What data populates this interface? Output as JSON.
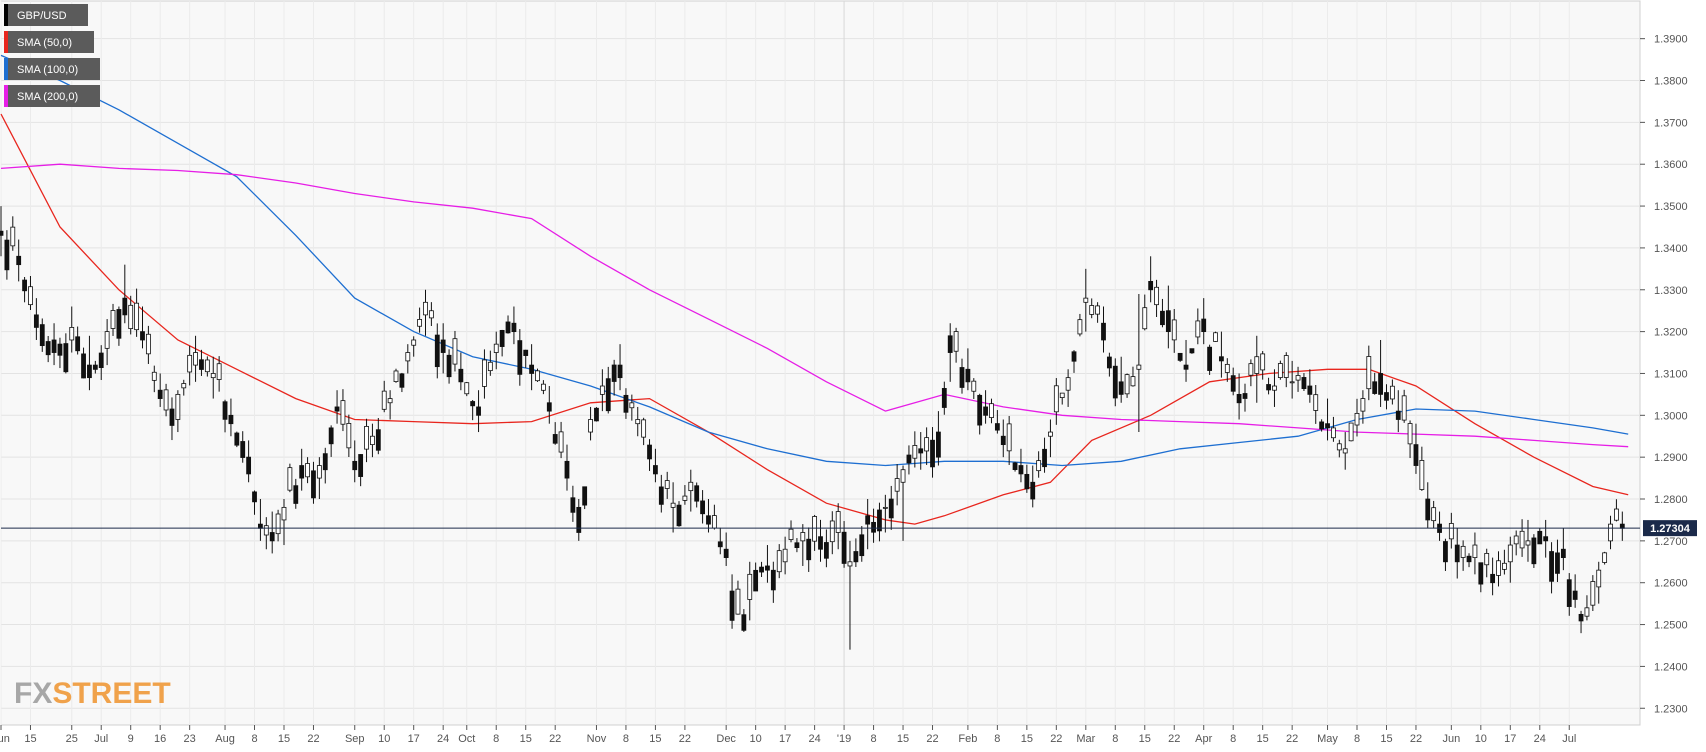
{
  "chart_data": {
    "type": "candlestick",
    "symbol": "GBP/USD",
    "legend": [
      {
        "label": "GBP/USD",
        "color": "#000000"
      },
      {
        "label": "SMA (50,0)",
        "color": "#e8261e"
      },
      {
        "label": "SMA (100,0)",
        "color": "#1e6fd1"
      },
      {
        "label": "SMA (200,0)",
        "color": "#e61ee6"
      }
    ],
    "legend_position": "top-left",
    "ylim": [
      1.226,
      1.399
    ],
    "y_ticks": [
      "1.2300",
      "1.2400",
      "1.2500",
      "1.2600",
      "1.2700",
      "1.2800",
      "1.2900",
      "1.3000",
      "1.3100",
      "1.3200",
      "1.3300",
      "1.3400",
      "1.3500",
      "1.3600",
      "1.3700",
      "1.3800",
      "1.3900"
    ],
    "x_ticks": [
      "Jun",
      "15",
      "25",
      "Jul",
      "9",
      "16",
      "23",
      "Aug",
      "8",
      "15",
      "22",
      "Sep",
      "10",
      "17",
      "24",
      "Oct",
      "8",
      "15",
      "22",
      "Nov",
      "8",
      "15",
      "22",
      "Dec",
      "10",
      "17",
      "24",
      "'19",
      "8",
      "15",
      "22",
      "Feb",
      "8",
      "15",
      "22",
      "Mar",
      "8",
      "15",
      "22",
      "Apr",
      "8",
      "15",
      "22",
      "May",
      "8",
      "15",
      "22",
      "Jun",
      "10",
      "17",
      "24",
      "Jul"
    ],
    "x_range_bars": [
      0,
      278
    ],
    "x_tick_bar_index": [
      0,
      5,
      12,
      17,
      22,
      27,
      32,
      38,
      43,
      48,
      53,
      60,
      65,
      70,
      75,
      79,
      84,
      89,
      94,
      101,
      106,
      111,
      116,
      123,
      128,
      133,
      138,
      143,
      148,
      153,
      158,
      164,
      169,
      174,
      179,
      184,
      189,
      194,
      199,
      204,
      209,
      214,
      219,
      225,
      230,
      235,
      240,
      246,
      251,
      256,
      261,
      266
    ],
    "current_price": "1.27304",
    "grid": true,
    "anchors": [
      [
        0,
        1.344,
        1.35,
        1.338,
        1.343
      ],
      [
        3,
        1.338,
        1.342,
        1.332,
        1.336
      ],
      [
        6,
        1.324,
        1.328,
        1.318,
        1.321
      ],
      [
        9,
        1.318,
        1.322,
        1.312,
        1.315
      ],
      [
        12,
        1.318,
        1.326,
        1.315,
        1.321
      ],
      [
        15,
        1.312,
        1.319,
        1.306,
        1.309
      ],
      [
        18,
        1.316,
        1.323,
        1.312,
        1.32
      ],
      [
        21,
        1.328,
        1.336,
        1.322,
        1.324
      ],
      [
        24,
        1.32,
        1.326,
        1.316,
        1.318
      ],
      [
        27,
        1.306,
        1.31,
        1.302,
        1.304
      ],
      [
        30,
        1.299,
        1.306,
        1.296,
        1.305
      ],
      [
        33,
        1.312,
        1.319,
        1.308,
        1.315
      ],
      [
        36,
        1.309,
        1.314,
        1.304,
        1.31
      ],
      [
        39,
        1.3,
        1.304,
        1.295,
        1.298
      ],
      [
        42,
        1.29,
        1.294,
        1.284,
        1.286
      ],
      [
        44,
        1.274,
        1.28,
        1.27,
        1.273
      ],
      [
        46,
        1.272,
        1.277,
        1.267,
        1.27
      ],
      [
        48,
        1.275,
        1.28,
        1.269,
        1.278
      ],
      [
        51,
        1.288,
        1.292,
        1.282,
        1.285
      ],
      [
        54,
        1.285,
        1.29,
        1.28,
        1.288
      ],
      [
        57,
        1.302,
        1.306,
        1.298,
        1.301
      ],
      [
        60,
        1.289,
        1.294,
        1.284,
        1.287
      ],
      [
        63,
        1.293,
        1.298,
        1.29,
        1.295
      ],
      [
        66,
        1.303,
        1.306,
        1.299,
        1.304
      ],
      [
        69,
        1.313,
        1.317,
        1.31,
        1.315
      ],
      [
        72,
        1.324,
        1.33,
        1.319,
        1.327
      ],
      [
        75,
        1.318,
        1.322,
        1.31,
        1.315
      ],
      [
        78,
        1.311,
        1.315,
        1.306,
        1.308
      ],
      [
        81,
        1.302,
        1.306,
        1.296,
        1.3
      ],
      [
        84,
        1.315,
        1.32,
        1.311,
        1.317
      ],
      [
        87,
        1.322,
        1.326,
        1.317,
        1.32
      ],
      [
        90,
        1.312,
        1.317,
        1.306,
        1.31
      ],
      [
        93,
        1.303,
        1.307,
        1.298,
        1.301
      ],
      [
        96,
        1.289,
        1.293,
        1.282,
        1.285
      ],
      [
        98,
        1.278,
        1.28,
        1.27,
        1.272
      ],
      [
        100,
        1.296,
        1.302,
        1.294,
        1.299
      ],
      [
        102,
        1.305,
        1.311,
        1.301,
        1.307
      ],
      [
        105,
        1.312,
        1.317,
        1.306,
        1.309
      ],
      [
        108,
        1.298,
        1.302,
        1.295,
        1.299
      ],
      [
        111,
        1.288,
        1.292,
        1.284,
        1.286
      ],
      [
        114,
        1.278,
        1.284,
        1.272,
        1.279
      ],
      [
        117,
        1.282,
        1.287,
        1.277,
        1.284
      ],
      [
        120,
        1.276,
        1.28,
        1.272,
        1.274
      ],
      [
        123,
        1.268,
        1.272,
        1.264,
        1.266
      ],
      [
        124,
        1.258,
        1.262,
        1.249,
        1.251
      ],
      [
        127,
        1.256,
        1.265,
        1.251,
        1.262
      ],
      [
        130,
        1.264,
        1.269,
        1.26,
        1.263
      ],
      [
        133,
        1.265,
        1.271,
        1.262,
        1.268
      ],
      [
        136,
        1.27,
        1.274,
        1.264,
        1.272
      ],
      [
        139,
        1.271,
        1.275,
        1.265,
        1.268
      ],
      [
        142,
        1.272,
        1.279,
        1.268,
        1.277
      ],
      [
        144,
        1.264,
        1.27,
        1.244,
        1.265
      ],
      [
        147,
        1.276,
        1.28,
        1.268,
        1.274
      ],
      [
        150,
        1.278,
        1.281,
        1.272,
        1.278
      ],
      [
        153,
        1.284,
        1.288,
        1.27,
        1.287
      ],
      [
        156,
        1.292,
        1.296,
        1.287,
        1.291
      ],
      [
        159,
        1.296,
        1.301,
        1.288,
        1.29
      ],
      [
        161,
        1.319,
        1.322,
        1.308,
        1.315
      ],
      [
        164,
        1.311,
        1.316,
        1.306,
        1.308
      ],
      [
        167,
        1.302,
        1.306,
        1.298,
        1.3
      ],
      [
        170,
        1.295,
        1.299,
        1.29,
        1.293
      ],
      [
        173,
        1.288,
        1.292,
        1.284,
        1.286
      ],
      [
        175,
        1.284,
        1.288,
        1.278,
        1.28
      ],
      [
        178,
        1.295,
        1.299,
        1.29,
        1.296
      ],
      [
        181,
        1.306,
        1.311,
        1.302,
        1.309
      ],
      [
        184,
        1.327,
        1.335,
        1.32,
        1.328
      ],
      [
        187,
        1.322,
        1.326,
        1.315,
        1.318
      ],
      [
        190,
        1.308,
        1.314,
        1.303,
        1.305
      ],
      [
        193,
        1.311,
        1.329,
        1.296,
        1.312
      ],
      [
        195,
        1.332,
        1.338,
        1.327,
        1.33
      ],
      [
        198,
        1.325,
        1.331,
        1.316,
        1.32
      ],
      [
        201,
        1.312,
        1.318,
        1.308,
        1.311
      ],
      [
        204,
        1.323,
        1.328,
        1.317,
        1.32
      ],
      [
        207,
        1.314,
        1.32,
        1.309,
        1.313
      ],
      [
        210,
        1.305,
        1.31,
        1.299,
        1.303
      ],
      [
        213,
        1.31,
        1.319,
        1.303,
        1.314
      ],
      [
        216,
        1.306,
        1.311,
        1.302,
        1.307
      ],
      [
        219,
        1.308,
        1.313,
        1.304,
        1.308
      ],
      [
        222,
        1.307,
        1.311,
        1.303,
        1.305
      ],
      [
        225,
        1.298,
        1.304,
        1.294,
        1.297
      ],
      [
        228,
        1.291,
        1.296,
        1.287,
        1.292
      ],
      [
        231,
        1.301,
        1.306,
        1.298,
        1.304
      ],
      [
        234,
        1.31,
        1.318,
        1.302,
        1.305
      ],
      [
        237,
        1.301,
        1.306,
        1.296,
        1.299
      ],
      [
        240,
        1.293,
        1.298,
        1.286,
        1.288
      ],
      [
        242,
        1.28,
        1.284,
        1.273,
        1.275
      ],
      [
        244,
        1.274,
        1.277,
        1.27,
        1.272
      ],
      [
        247,
        1.269,
        1.273,
        1.261,
        1.265
      ],
      [
        250,
        1.266,
        1.272,
        1.262,
        1.269
      ],
      [
        253,
        1.262,
        1.266,
        1.257,
        1.26
      ],
      [
        256,
        1.265,
        1.271,
        1.26,
        1.269
      ],
      [
        259,
        1.269,
        1.275,
        1.265,
        1.27
      ],
      [
        262,
        1.271,
        1.275,
        1.266,
        1.27
      ],
      [
        265,
        1.268,
        1.273,
        1.263,
        1.266
      ],
      [
        267,
        1.258,
        1.262,
        1.254,
        1.256
      ],
      [
        269,
        1.252,
        1.257,
        1.251,
        1.254
      ],
      [
        271,
        1.259,
        1.265,
        1.255,
        1.263
      ],
      [
        273,
        1.27,
        1.276,
        1.268,
        1.274
      ],
      [
        275,
        1.274,
        1.277,
        1.27,
        1.273
      ]
    ],
    "series": [
      {
        "name": "SMA (50,0)",
        "color": "#e8261e",
        "points": [
          [
            0,
            1.372
          ],
          [
            10,
            1.345
          ],
          [
            20,
            1.33
          ],
          [
            30,
            1.318
          ],
          [
            40,
            1.311
          ],
          [
            50,
            1.304
          ],
          [
            60,
            1.299
          ],
          [
            70,
            1.2985
          ],
          [
            80,
            1.298
          ],
          [
            90,
            1.2985
          ],
          [
            100,
            1.303
          ],
          [
            110,
            1.304
          ],
          [
            120,
            1.296
          ],
          [
            130,
            1.287
          ],
          [
            140,
            1.279
          ],
          [
            150,
            1.275
          ],
          [
            155,
            1.274
          ],
          [
            160,
            1.276
          ],
          [
            170,
            1.281
          ],
          [
            178,
            1.284
          ],
          [
            185,
            1.294
          ],
          [
            195,
            1.3
          ],
          [
            205,
            1.308
          ],
          [
            215,
            1.31
          ],
          [
            225,
            1.311
          ],
          [
            232,
            1.311
          ],
          [
            240,
            1.307
          ],
          [
            250,
            1.298
          ],
          [
            260,
            1.29
          ],
          [
            270,
            1.283
          ],
          [
            276,
            1.281
          ]
        ]
      },
      {
        "name": "SMA (100,0)",
        "color": "#1e6fd1",
        "points": [
          [
            0,
            1.386
          ],
          [
            10,
            1.38
          ],
          [
            20,
            1.373
          ],
          [
            30,
            1.365
          ],
          [
            40,
            1.357
          ],
          [
            50,
            1.343
          ],
          [
            60,
            1.328
          ],
          [
            70,
            1.32
          ],
          [
            80,
            1.314
          ],
          [
            90,
            1.311
          ],
          [
            100,
            1.307
          ],
          [
            110,
            1.302
          ],
          [
            120,
            1.296
          ],
          [
            130,
            1.292
          ],
          [
            140,
            1.289
          ],
          [
            150,
            1.288
          ],
          [
            160,
            1.289
          ],
          [
            170,
            1.289
          ],
          [
            180,
            1.288
          ],
          [
            190,
            1.289
          ],
          [
            200,
            1.292
          ],
          [
            210,
            1.2935
          ],
          [
            220,
            1.295
          ],
          [
            230,
            1.299
          ],
          [
            240,
            1.3015
          ],
          [
            250,
            1.301
          ],
          [
            260,
            1.299
          ],
          [
            270,
            1.297
          ],
          [
            276,
            1.2955
          ]
        ]
      },
      {
        "name": "SMA (200,0)",
        "color": "#e61ee6",
        "points": [
          [
            0,
            1.359
          ],
          [
            10,
            1.36
          ],
          [
            20,
            1.359
          ],
          [
            30,
            1.3585
          ],
          [
            40,
            1.3575
          ],
          [
            50,
            1.3555
          ],
          [
            60,
            1.353
          ],
          [
            70,
            1.351
          ],
          [
            80,
            1.3495
          ],
          [
            90,
            1.347
          ],
          [
            100,
            1.338
          ],
          [
            110,
            1.33
          ],
          [
            120,
            1.323
          ],
          [
            130,
            1.316
          ],
          [
            140,
            1.308
          ],
          [
            150,
            1.301
          ],
          [
            160,
            1.305
          ],
          [
            170,
            1.302
          ],
          [
            180,
            1.3
          ],
          [
            190,
            1.299
          ],
          [
            200,
            1.2985
          ],
          [
            210,
            1.298
          ],
          [
            220,
            1.297
          ],
          [
            230,
            1.296
          ],
          [
            240,
            1.2955
          ],
          [
            250,
            1.295
          ],
          [
            260,
            1.294
          ],
          [
            270,
            1.293
          ],
          [
            276,
            1.2925
          ]
        ]
      }
    ]
  },
  "logo": {
    "part1": "FX",
    "part2": "STREET"
  }
}
